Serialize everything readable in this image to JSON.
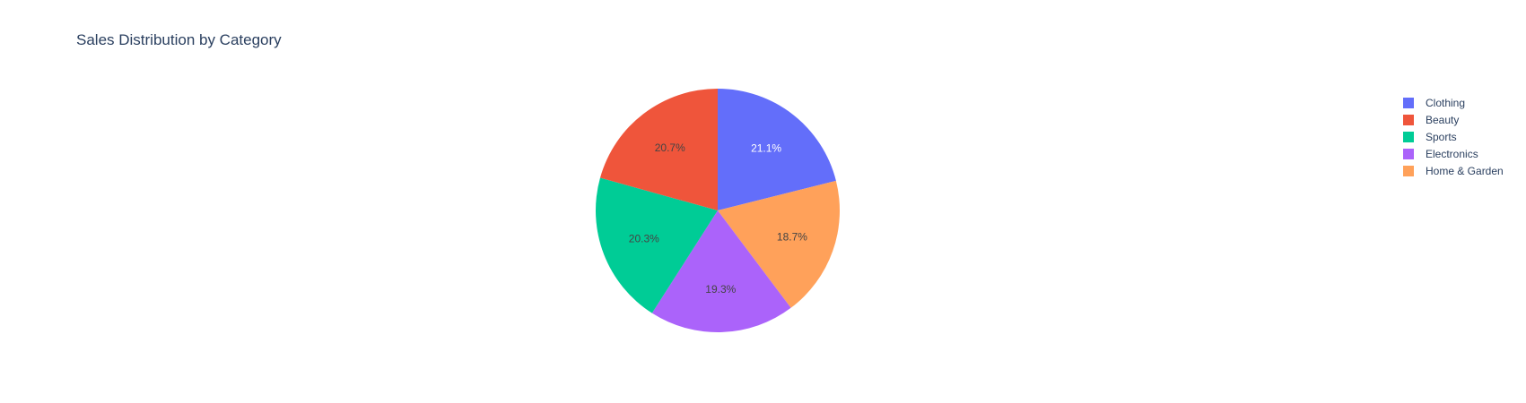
{
  "chart_data": {
    "type": "pie",
    "title": "Sales Distribution by Category",
    "slices": [
      {
        "label": "Clothing",
        "value": 21.1,
        "display": "21.1%",
        "color": "#636efa",
        "text_color": "#ffffff"
      },
      {
        "label": "Home & Garden",
        "value": 18.7,
        "display": "18.7%",
        "color": "#ffa15a",
        "text_color": "#444444"
      },
      {
        "label": "Electronics",
        "value": 19.3,
        "display": "19.3%",
        "color": "#ab63fa",
        "text_color": "#444444"
      },
      {
        "label": "Sports",
        "value": 20.3,
        "display": "20.3%",
        "color": "#00cc96",
        "text_color": "#444444"
      },
      {
        "label": "Beauty",
        "value": 20.7,
        "display": "20.7%",
        "color": "#ef553b",
        "text_color": "#444444"
      }
    ],
    "direction": "clockwise",
    "start_angle": "top (12 o'clock)",
    "legend": {
      "position": "top-right",
      "order": [
        "Clothing",
        "Beauty",
        "Sports",
        "Electronics",
        "Home & Garden"
      ]
    }
  }
}
